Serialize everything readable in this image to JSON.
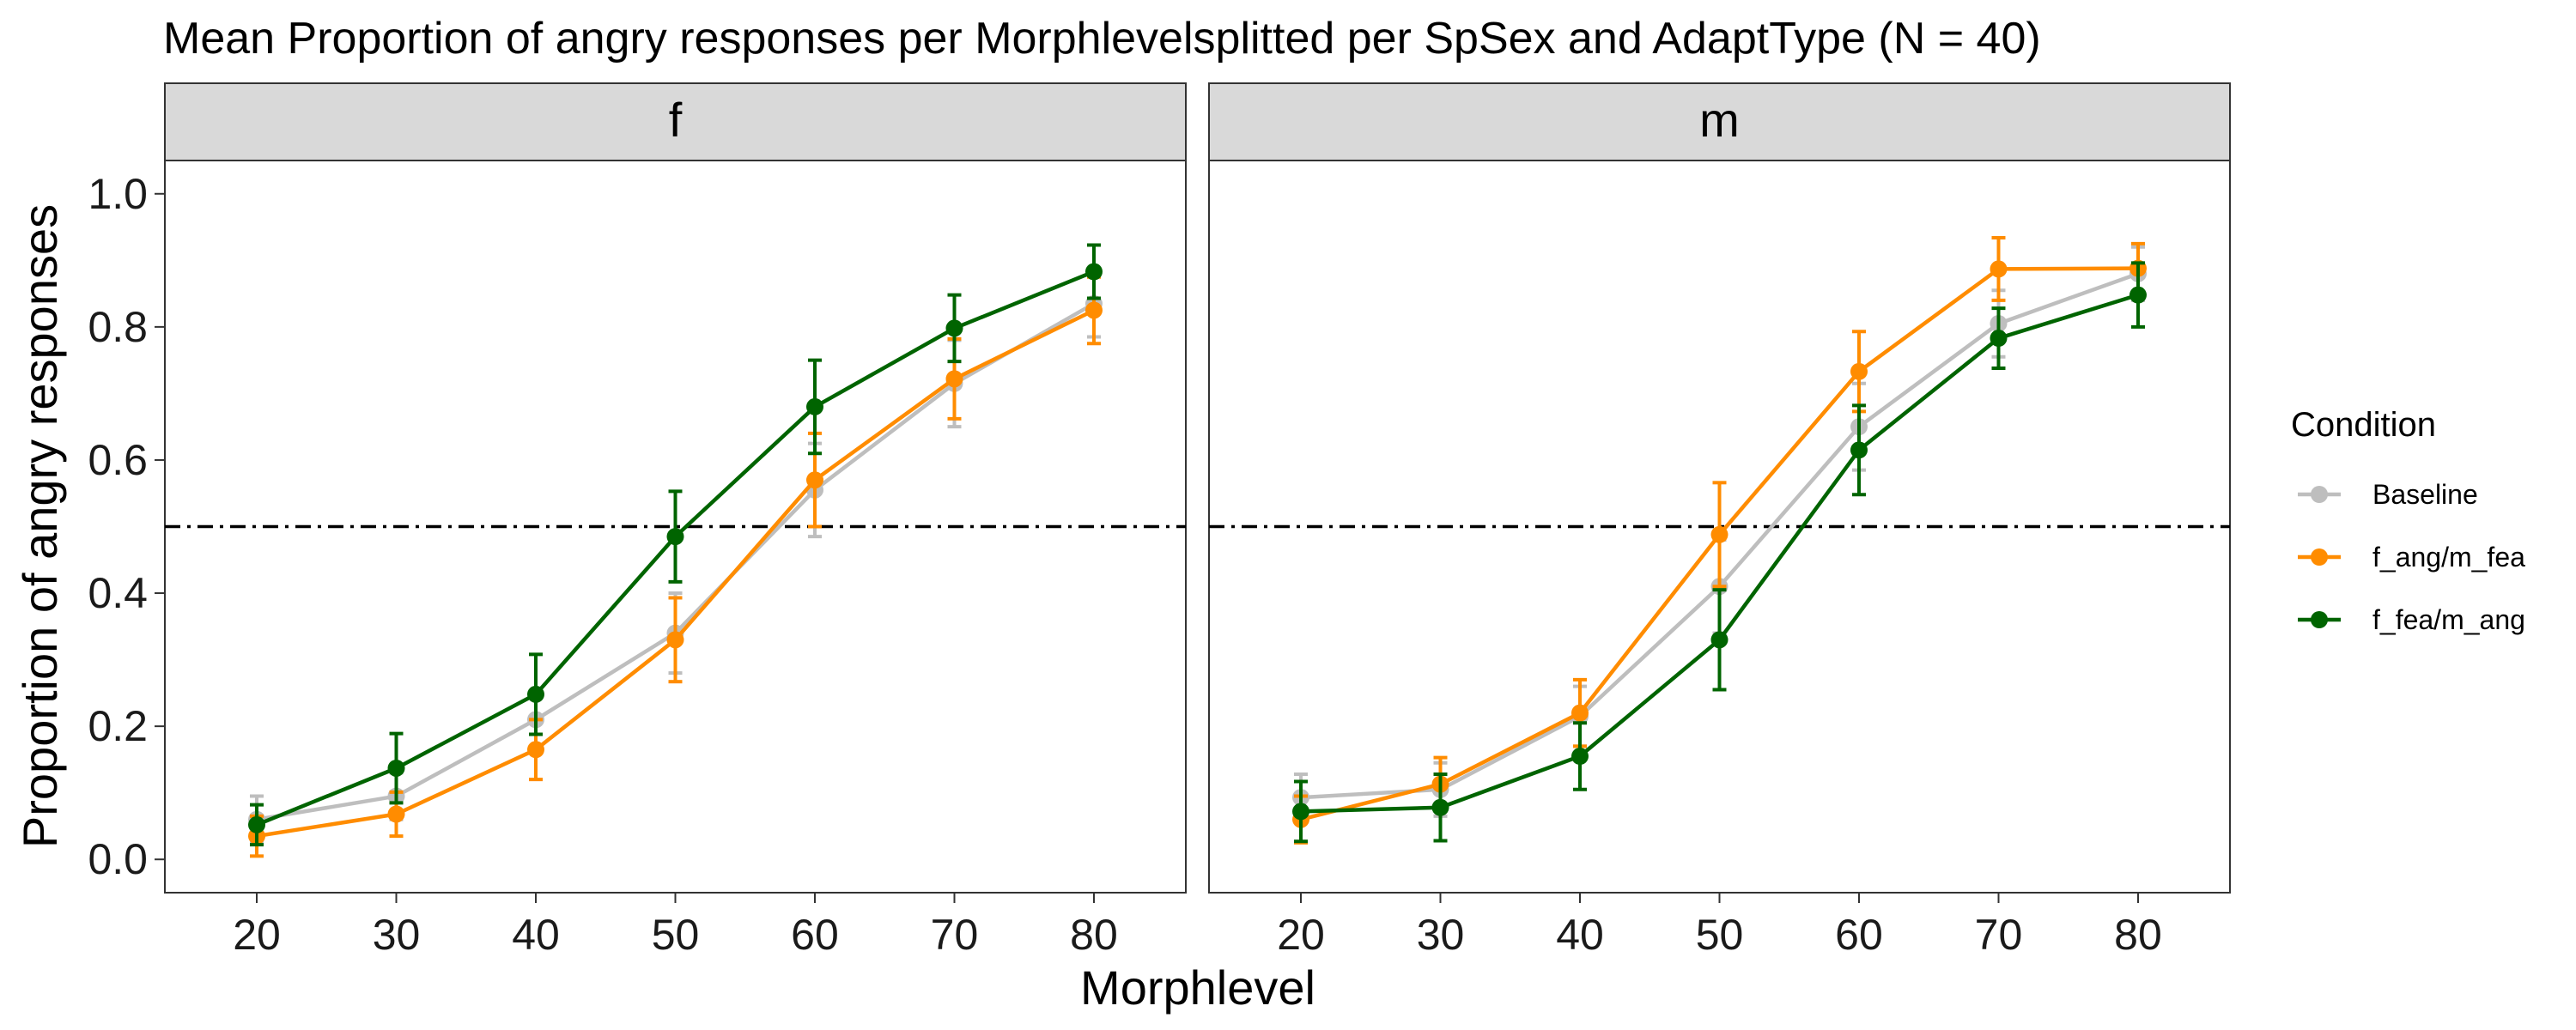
{
  "chart_data": {
    "type": "line",
    "title": "Mean Proportion of angry responses per Morphlevelsplitted per SpSex and AdaptType (N = 40)",
    "xlabel": "Morphlevel",
    "ylabel": "Proportion of angry responses",
    "x": [
      20,
      30,
      40,
      50,
      60,
      70,
      80
    ],
    "x_tick_labels": [
      "20",
      "30",
      "40",
      "50",
      "60",
      "70",
      "80"
    ],
    "ylim": [
      -0.05,
      1.05
    ],
    "y_ticks": [
      0.0,
      0.2,
      0.4,
      0.6,
      0.8,
      1.0
    ],
    "y_tick_labels": [
      "0.0",
      "0.2",
      "0.4",
      "0.6",
      "0.8",
      "1.0"
    ],
    "reference_line": {
      "y": 0.5,
      "style": "dash-dot"
    },
    "grid": false,
    "legend": {
      "title": "Condition",
      "position": "right",
      "entries": [
        "Baseline",
        "f_ang/m_fea",
        "f_fea/m_ang"
      ]
    },
    "colors": {
      "Baseline": "#bebebe",
      "f_ang/m_fea": "#ff8c00",
      "f_fea/m_ang": "#006400"
    },
    "facets": [
      {
        "label": "f",
        "series": [
          {
            "name": "Baseline",
            "values": [
              0.06,
              0.095,
              0.21,
              0.34,
              0.555,
              0.715,
              0.835
            ],
            "errors": [
              0.035,
              0.035,
              0.04,
              0.06,
              0.07,
              0.065,
              0.05
            ]
          },
          {
            "name": "f_ang/m_fea",
            "values": [
              0.035,
              0.068,
              0.165,
              0.33,
              0.57,
              0.722,
              0.825
            ],
            "errors": [
              0.03,
              0.033,
              0.045,
              0.063,
              0.07,
              0.06,
              0.05
            ]
          },
          {
            "name": "f_fea/m_ang",
            "values": [
              0.052,
              0.137,
              0.248,
              0.485,
              0.68,
              0.798,
              0.883
            ],
            "errors": [
              0.03,
              0.052,
              0.06,
              0.068,
              0.07,
              0.05,
              0.04
            ]
          }
        ]
      },
      {
        "label": "m",
        "series": [
          {
            "name": "Baseline",
            "values": [
              0.093,
              0.105,
              0.215,
              0.41,
              0.65,
              0.805,
              0.88
            ],
            "errors": [
              0.035,
              0.04,
              0.045,
              0.07,
              0.065,
              0.05,
              0.04
            ]
          },
          {
            "name": "f_ang/m_fea",
            "values": [
              0.06,
              0.113,
              0.22,
              0.488,
              0.733,
              0.887,
              0.888
            ],
            "errors": [
              0.035,
              0.04,
              0.05,
              0.078,
              0.06,
              0.047,
              0.037
            ]
          },
          {
            "name": "f_fea/m_ang",
            "values": [
              0.072,
              0.078,
              0.155,
              0.33,
              0.615,
              0.783,
              0.848
            ],
            "errors": [
              0.045,
              0.05,
              0.05,
              0.075,
              0.067,
              0.045,
              0.048
            ]
          }
        ]
      }
    ]
  }
}
